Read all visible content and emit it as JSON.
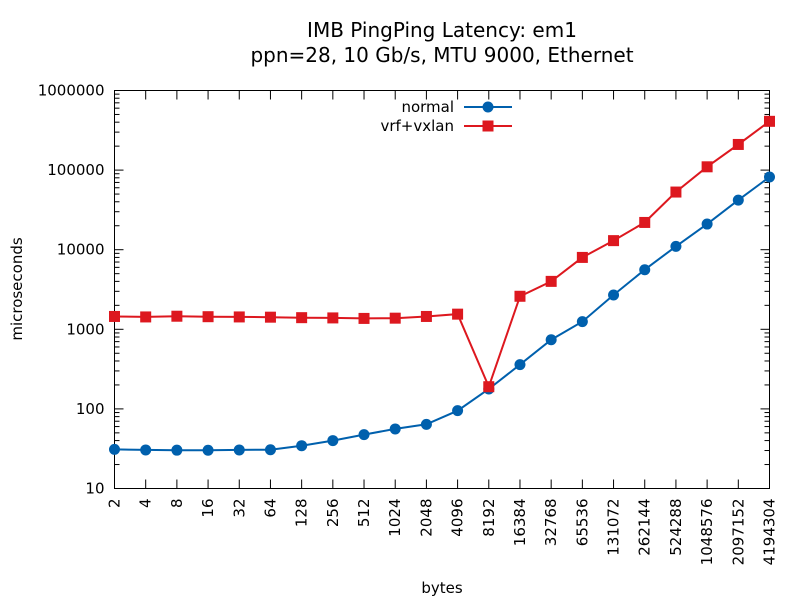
{
  "chart_data": {
    "type": "line",
    "title": [
      "IMB PingPing Latency: em1",
      "ppn=28, 10 Gb/s, MTU 9000, Ethernet"
    ],
    "xlabel": "bytes",
    "ylabel": "microseconds",
    "x_scale": "log2",
    "y_scale": "log10",
    "xlim": [
      2,
      4194304
    ],
    "ylim": [
      10,
      1000000
    ],
    "x": [
      2,
      4,
      8,
      16,
      32,
      64,
      128,
      256,
      512,
      1024,
      2048,
      4096,
      8192,
      16384,
      32768,
      65536,
      131072,
      262144,
      524288,
      1048576,
      2097152,
      4194304
    ],
    "x_tick_labels": [
      "2",
      "4",
      "8",
      "16",
      "32",
      "64",
      "128",
      "256",
      "512",
      "1024",
      "2048",
      "4096",
      "8192",
      "16384",
      "32768",
      "65536",
      "131072",
      "262144",
      "524288",
      "1048576",
      "2097152",
      "4194304"
    ],
    "y_tick_labels": [
      "10",
      "100",
      "1000",
      "10000",
      "100000",
      "1000000"
    ],
    "grid": false,
    "legend_position": "top-center",
    "series": [
      {
        "name": "normal",
        "color": "#0060ad",
        "marker": "circle",
        "values": [
          31,
          30.5,
          30.3,
          30.2,
          30.5,
          30.7,
          34.5,
          40,
          47.5,
          56,
          64,
          95,
          178,
          360,
          740,
          1250,
          2700,
          5600,
          11000,
          21000,
          42000,
          82000
        ]
      },
      {
        "name": "vrf+vxlan",
        "color": "#dd181f",
        "marker": "square",
        "values": [
          1450,
          1430,
          1460,
          1440,
          1430,
          1420,
          1400,
          1390,
          1370,
          1380,
          1450,
          1550,
          190,
          2600,
          4000,
          8000,
          13000,
          22000,
          53000,
          110000,
          210000,
          410000
        ]
      }
    ]
  }
}
